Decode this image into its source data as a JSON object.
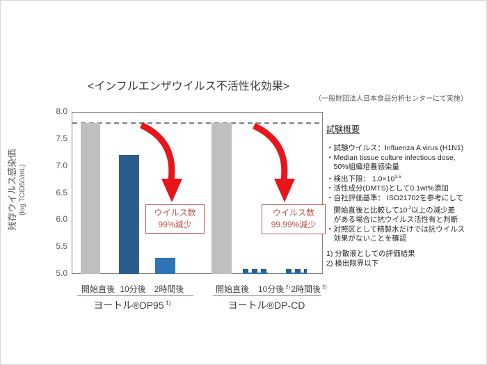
{
  "page": {
    "title": "<インフルエンザウイルス不活性化効果>",
    "subtitle": "（一般財団法人日本食品分析センターにて実施）"
  },
  "chart_data": {
    "type": "bar",
    "title": "<インフルエンザウイルス不活性化効果>",
    "ylabel": "残存ウイルス感染価",
    "ylabel_unit": "(log TCID50/mL)",
    "ylim": [
      5.0,
      8.0
    ],
    "yticks": [
      8.0,
      7.5,
      7.0,
      6.5,
      6.0,
      5.5,
      5.0
    ],
    "reference_line": 7.8,
    "grid": false,
    "legend": "none",
    "groups": [
      {
        "name": "ヨートル®DP95",
        "name_sup": "1)",
        "bars": [
          {
            "category": "開始直後",
            "category_sup": "",
            "value": 7.8,
            "color": "gray"
          },
          {
            "category": "10分後",
            "category_sup": "",
            "value": 7.2,
            "color": "dark-blue"
          },
          {
            "category": "2時間後",
            "category_sup": "",
            "value": 5.3,
            "color": "light-blue"
          }
        ],
        "annotation": {
          "line1": "ウイルス数",
          "line2": "99%減少"
        }
      },
      {
        "name": "ヨートル®DP-CD",
        "name_sup": "",
        "bars": [
          {
            "category": "開始直後",
            "category_sup": "",
            "value": 7.8,
            "color": "gray"
          },
          {
            "category": "10分後",
            "category_sup": "2)",
            "value": 5.05,
            "color": "dark-blue",
            "below_detection": true
          },
          {
            "category": "2時間後",
            "category_sup": "2)",
            "value": 5.05,
            "color": "dark-blue",
            "below_detection": true
          }
        ],
        "annotation": {
          "line1": "ウイルス数",
          "line2": "99.99%減少"
        }
      }
    ],
    "colors": {
      "bar_gray": "#BFBFBF",
      "bar_dark_blue": "#2B5D8C",
      "bar_light_blue": "#2E75B6",
      "arrow_red": "#E8151C",
      "annotation_red": "#C0504D",
      "axis_gray": "#808080"
    }
  },
  "sidebar": {
    "heading": "試験概要",
    "bullet_lines": [
      [
        {
          "t": "・試験ウイルス：Influenza A virus (H1N1)"
        }
      ],
      [
        {
          "t": "・Median tissue culture infectious dose,"
        }
      ],
      [
        {
          "t": "　50%組織培養感染量"
        }
      ],
      [
        {
          "t": "・検出下限： 1.0×10"
        },
        {
          "t": "3.5",
          "sup": true
        }
      ],
      [
        {
          "t": "・活性成分(DMTS)として0.1wt%添加"
        }
      ],
      [
        {
          "t": "・自社評価基準： ISO21702を参考にして"
        }
      ],
      [
        {
          "t": "　開始直後と比較して10"
        },
        {
          "t": "-2",
          "sup": true
        },
        {
          "t": "以上の減少差"
        }
      ],
      [
        {
          "t": "　がある場合に抗ウイルス活性有と判断"
        }
      ],
      [
        {
          "t": "・対照区として精製水だけでは抗ウイルス"
        }
      ],
      [
        {
          "t": "　効果がないことを確認"
        }
      ]
    ],
    "footnotes": [
      "1) 分散液としての評価結果",
      "2) 検出限界以下"
    ]
  }
}
